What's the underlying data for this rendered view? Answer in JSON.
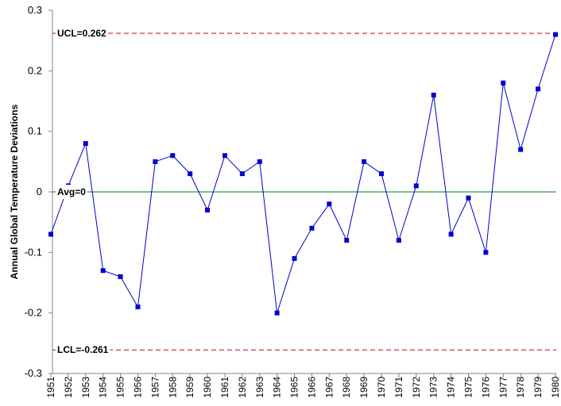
{
  "chart_data": {
    "type": "line",
    "ylabel": "Annual Global Temperature Deviations",
    "xlabel": "",
    "x": [
      "1951",
      "1952",
      "1953",
      "1954",
      "1955",
      "1956",
      "1957",
      "1958",
      "1959",
      "1960",
      "1961",
      "1962",
      "1963",
      "1964",
      "1965",
      "1966",
      "1967",
      "1968",
      "1969",
      "1970",
      "1971",
      "1972",
      "1973",
      "1974",
      "1975",
      "1976",
      "1977",
      "1978",
      "1979",
      "1980"
    ],
    "series": [
      {
        "values": [
          -0.07,
          0.01,
          0.08,
          -0.13,
          -0.14,
          -0.19,
          0.05,
          0.06,
          0.03,
          -0.03,
          0.06,
          0.03,
          0.05,
          -0.2,
          -0.11,
          -0.06,
          -0.02,
          -0.08,
          0.05,
          0.03,
          -0.08,
          0.01,
          0.16,
          -0.07,
          -0.01,
          -0.1,
          0.18,
          0.07,
          0.17,
          0.26
        ],
        "color": "#0000cc"
      }
    ],
    "ylim": [
      -0.3,
      0.3
    ],
    "yticks": [
      "0.3",
      "0.2",
      "0.1",
      "0",
      "-0.1",
      "-0.2",
      "-0.3"
    ],
    "yticks_values": [
      0.3,
      0.2,
      0.1,
      0,
      -0.1,
      -0.2,
      -0.3
    ],
    "reference_lines": [
      {
        "label": "UCL=0.262",
        "value": 0.262,
        "color": "#cc0000",
        "style": "dashed"
      },
      {
        "label": "Avg=0",
        "value": 0,
        "color": "#008000",
        "style": "solid"
      },
      {
        "label": "LCL=-0.261",
        "value": -0.261,
        "color": "#cc0000",
        "style": "dashed"
      }
    ],
    "grid": false,
    "legend": "none"
  }
}
